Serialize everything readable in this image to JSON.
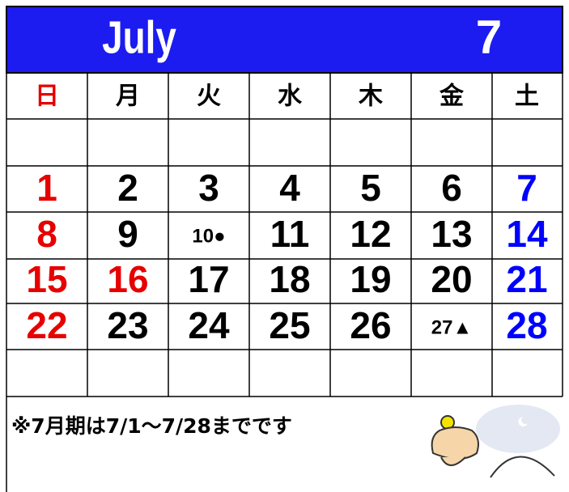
{
  "header": {
    "month_name": "July",
    "month_number": "7"
  },
  "weekdays": [
    {
      "text": "日",
      "color": "#e60000"
    },
    {
      "text": "月",
      "color": "#000000"
    },
    {
      "text": "火",
      "color": "#000000"
    },
    {
      "text": "水",
      "color": "#000000"
    },
    {
      "text": "木",
      "color": "#000000"
    },
    {
      "text": "金",
      "color": "#000000"
    },
    {
      "text": "土",
      "color": "#000000"
    }
  ],
  "weeks": [
    [
      {
        "text": "1",
        "color": "#e60000"
      },
      {
        "text": "2",
        "color": "#000000"
      },
      {
        "text": "3",
        "color": "#000000"
      },
      {
        "text": "4",
        "color": "#000000"
      },
      {
        "text": "5",
        "color": "#000000"
      },
      {
        "text": "6",
        "color": "#000000"
      },
      {
        "text": "7",
        "color": "#0000ff"
      }
    ],
    [
      {
        "text": "8",
        "color": "#e60000"
      },
      {
        "text": "9",
        "color": "#000000"
      },
      {
        "text": "10●",
        "color": "#000000"
      },
      {
        "text": "11",
        "color": "#000000"
      },
      {
        "text": "12",
        "color": "#000000"
      },
      {
        "text": "13",
        "color": "#000000"
      },
      {
        "text": "14",
        "color": "#0000ff"
      }
    ],
    [
      {
        "text": "15",
        "color": "#e60000"
      },
      {
        "text": "16",
        "color": "#e60000"
      },
      {
        "text": "17",
        "color": "#000000"
      },
      {
        "text": "18",
        "color": "#000000"
      },
      {
        "text": "19",
        "color": "#000000"
      },
      {
        "text": "20",
        "color": "#000000"
      },
      {
        "text": "21",
        "color": "#0000ff"
      }
    ],
    [
      {
        "text": "22",
        "color": "#e60000"
      },
      {
        "text": "23",
        "color": "#000000"
      },
      {
        "text": "24",
        "color": "#000000"
      },
      {
        "text": "25",
        "color": "#000000"
      },
      {
        "text": "26",
        "color": "#000000"
      },
      {
        "text": "27▲",
        "color": "#000000"
      },
      {
        "text": "28",
        "color": "#0000ff"
      }
    ]
  ],
  "note": "※7月期は7/1〜7/28までです"
}
